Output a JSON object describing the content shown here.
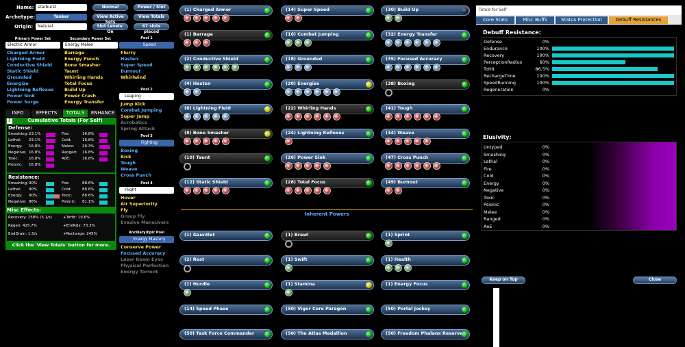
{
  "left": {
    "name_label": "Name:",
    "name_value": "starburst",
    "archetype_label": "Archetype:",
    "archetype_value": "Tanker",
    "origin_label": "Origin:",
    "origin_value": "Natural",
    "btn_normal": "Normal",
    "btn_power_slot": "Power / Slot",
    "btn_active_sets": "View Active Sets",
    "btn_totals": "View Totals",
    "btn_slot_levels": "Slot Levels: On",
    "btn_slots_placed": "67 slots placed",
    "primary_hdr": "Primary Power Set",
    "secondary_hdr": "Secondary Power Set",
    "primary_sel": "Electric Armor",
    "secondary_sel": "Energy Melee",
    "primary_powers": [
      "Charged Armor",
      "Lightning Field",
      "Conductive Shield",
      "Static Shield",
      "Grounded",
      "Energize",
      "Lightning Reflexes",
      "Power Sink",
      "Power Surge"
    ],
    "secondary_powers": [
      "Barrage",
      "Energy Punch",
      "Bone Smasher",
      "Taunt",
      "Whirling Hands",
      "Total Focus",
      "Build Up",
      "Power Crash",
      "Energy Transfer"
    ],
    "pools": [
      {
        "hdr": "Pool 1",
        "sel": "Speed",
        "powers": [
          "Flurry",
          "Hasten",
          "Super Speed",
          "Burnout",
          "Whirlwind"
        ]
      },
      {
        "hdr": "Pool 2",
        "sel": "Leaping",
        "powers": [
          "Jump Kick",
          "Combat Jumping",
          "Super Jump",
          "Acrobatics",
          "Spring Attack"
        ]
      },
      {
        "hdr": "Pool 3",
        "sel": "Fighting",
        "powers": [
          "Boxing",
          "Kick",
          "Tough",
          "Weave",
          "Cross Punch"
        ]
      },
      {
        "hdr": "Pool 4",
        "sel": "Flight",
        "powers": [
          "Hover",
          "Air Superiority",
          "Fly",
          "Group Fly",
          "Evasive Maneuvers"
        ]
      },
      {
        "hdr": "Ancillary/Epic Pool",
        "sel": "Energy Mastery",
        "powers": [
          "Conserve Power",
          "Focused Accuracy",
          "Laser Beam Eyes",
          "Physical Perfection",
          "Energy Torrent"
        ]
      }
    ],
    "tabs": [
      "INFO",
      "EFFECTS",
      "TOTALS",
      "ENHANCE"
    ],
    "totals_f": "F",
    "totals_title": "Cumulative Totals (For Self)",
    "defense_hdr": "Defense:",
    "defense": [
      [
        "Smashing:",
        "23.1%"
      ],
      [
        "Fire:",
        "16.8%"
      ],
      [
        "Lethal:",
        "23.1%"
      ],
      [
        "Cold:",
        "16.8%"
      ],
      [
        "Energy:",
        "16.8%"
      ],
      [
        "Melee:",
        "29.3%"
      ],
      [
        "Negative:",
        "16.8%"
      ],
      [
        "Ranged:",
        "16.8%"
      ],
      [
        "Toxic:",
        "16.8%"
      ],
      [
        "AoE:",
        "16.8%"
      ],
      [
        "Psionic:",
        "16.8%"
      ],
      [
        "",
        ""
      ]
    ],
    "resist_hdr": "Resistance:",
    "resist": [
      [
        "Smashing:",
        "90%"
      ],
      [
        "Fire:",
        "88.6%"
      ],
      [
        "Lethal:",
        "90%"
      ],
      [
        "Cold:",
        "88.6%"
      ],
      [
        "Energy:",
        "90%"
      ],
      [
        "Toxic:",
        "88.6%"
      ],
      [
        "Negative:",
        "86%"
      ],
      [
        "Psionic:",
        "81.1%"
      ]
    ],
    "misc_hdr": "Misc Effects:",
    "misc": [
      [
        "Recovery: 158% (5.1/s)",
        "+ToHit: 10.6%"
      ],
      [
        "Regen: 425.7%",
        "+EndRdx: 73.3%"
      ],
      [
        "EndDrain: 1.5/s",
        "+Recharge: 245%"
      ]
    ],
    "footer": "Click the 'View Totals' button for more."
  },
  "grid": {
    "inherent_title": "Inherent Powers"
  },
  "panel": {
    "title": "Totals for Self",
    "tabs": [
      "Core Stats",
      "Misc Buffs",
      "Status Protection",
      "Debuff Resistances"
    ],
    "debuff_hdr": "Debuff Resistance:",
    "debuff": [
      [
        "Defense",
        "0%",
        0
      ],
      [
        "Endurance",
        "100%",
        1
      ],
      [
        "Recovery",
        "100%",
        1
      ],
      [
        "PerceptionRadius",
        "60%",
        0.6
      ],
      [
        "ToHit",
        "86.5%",
        0.865
      ],
      [
        "RechargeTime",
        "100%",
        1
      ],
      [
        "SpeedRunning",
        "100%",
        1
      ],
      [
        "Regeneration",
        "0%",
        0
      ]
    ],
    "elus_hdr": "Elusivity:",
    "elus": [
      [
        "Untyped",
        "0%"
      ],
      [
        "Smashing",
        "0%"
      ],
      [
        "Lethal",
        "0%"
      ],
      [
        "Fire",
        "0%"
      ],
      [
        "Cold",
        "0%"
      ],
      [
        "Energy",
        "0%"
      ],
      [
        "Negative",
        "0%"
      ],
      [
        "Toxic",
        "0%"
      ],
      [
        "Psionic",
        "0%"
      ],
      [
        "Melee",
        "0%"
      ],
      [
        "Ranged",
        "0%"
      ],
      [
        "AoE",
        "0%"
      ]
    ],
    "keep_on_top": "Keep on Top",
    "close": "Close"
  },
  "colors": {
    "primary": "#5db1ff",
    "secondary": "#ffd95a",
    "accent": "#18c9c9",
    "pink": "#c400c4",
    "green_bg": "#0a8a0a"
  }
}
